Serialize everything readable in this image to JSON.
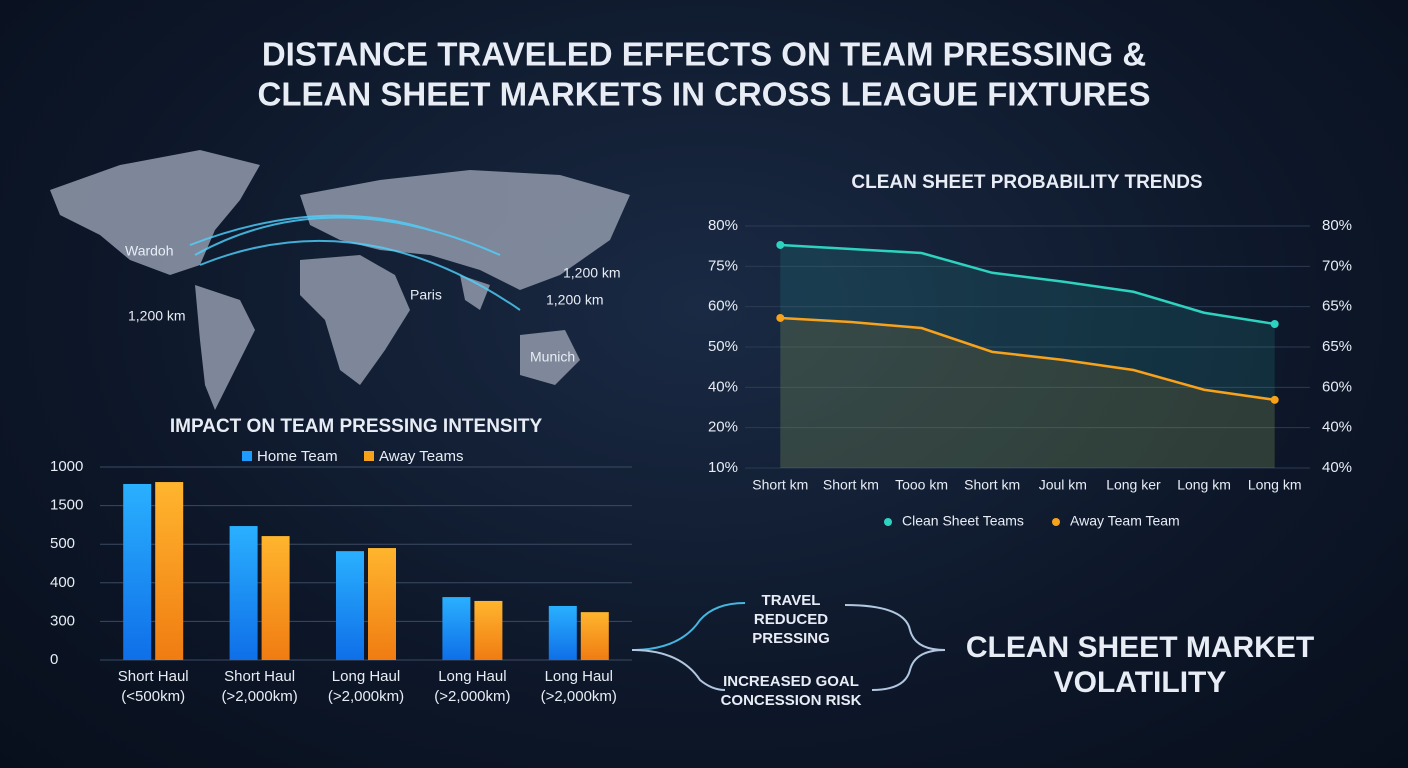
{
  "title": [
    "DISTANCE TRAVELED EFFECTS ON TEAM PRESSING &",
    "CLEAN SHEET MARKETS IN CROSS LEAGUE FIXTURES"
  ],
  "map": {
    "labels": [
      "Wardoh",
      "Paris",
      "Munich",
      "1,200 km",
      "1,200 km",
      "1,200 km"
    ]
  },
  "chart_data": [
    {
      "type": "bar",
      "title": "IMPACT ON TEAM PRESSING INTENSITY",
      "categories": [
        "Short Haul\n(<500km)",
        "Short Haul\n(>2,000km)",
        "Long Haul\n(>2,000km)",
        "Long Haul\n(>2,000km)",
        "Long Haul\n(>2,000km)"
      ],
      "series": [
        {
          "name": "Home Team",
          "color": "#1e9bff",
          "values": [
            4.56,
            3.47,
            2.82,
            1.63,
            1.4
          ]
        },
        {
          "name": "Away Teams",
          "color": "#f7a21b",
          "values": [
            4.61,
            3.21,
            2.9,
            1.53,
            1.24
          ]
        }
      ],
      "ylim": [
        0,
        5
      ],
      "yticks": [
        0,
        {
          "value": 1,
          "label": "300"
        },
        {
          "value": 2,
          "label": "400"
        },
        {
          "value": 3,
          "label": "500"
        },
        {
          "value": 4,
          "label": "1500"
        },
        {
          "value": 5,
          "label": "1000"
        }
      ],
      "grid": true
    },
    {
      "type": "line",
      "title": "CLEAN SHEET PROBABILITY TRENDS",
      "categories": [
        "Short km",
        "Short km",
        "Tooo km",
        "Short km",
        "Joul km",
        "Long ker",
        "Long km",
        "Long km"
      ],
      "series": [
        {
          "name": "Clean Sheet Teams",
          "color": "#2ed3c0",
          "values": [
            5.53,
            5.43,
            5.33,
            4.84,
            4.62,
            4.37,
            3.85,
            3.57
          ]
        },
        {
          "name": "Away Team Team",
          "color": "#f7a21b",
          "values": [
            3.72,
            3.62,
            3.47,
            2.88,
            2.68,
            2.43,
            1.94,
            1.69
          ]
        }
      ],
      "ylim": [
        0,
        6
      ],
      "yticks": [
        {
          "value": 0,
          "label": "10%"
        },
        {
          "value": 1,
          "label": "20%"
        },
        {
          "value": 2,
          "label": "40%"
        },
        {
          "value": 3,
          "label": "50%"
        },
        {
          "value": 4,
          "label": "60%"
        },
        {
          "value": 5,
          "label": "75%"
        },
        {
          "value": 6,
          "label": "80%"
        }
      ],
      "y2lim": [
        0,
        6
      ],
      "y2ticks": [
        {
          "value": 0,
          "label": "40%"
        },
        {
          "value": 1,
          "label": "40%"
        },
        {
          "value": 2,
          "label": "60%"
        },
        {
          "value": 3,
          "label": "65%"
        },
        {
          "value": 4,
          "label": "65%"
        },
        {
          "value": 5,
          "label": "70%"
        },
        {
          "value": 6,
          "label": "80%"
        }
      ],
      "grid": true
    }
  ],
  "flow": {
    "cause": [
      "TRAVEL",
      "REDUCED",
      "PRESSING"
    ],
    "effect": [
      "INCREASED GOAL",
      "CONCESSION RISK"
    ],
    "result": [
      "CLEAN SHEET MARKET",
      "VOLATILITY"
    ]
  }
}
